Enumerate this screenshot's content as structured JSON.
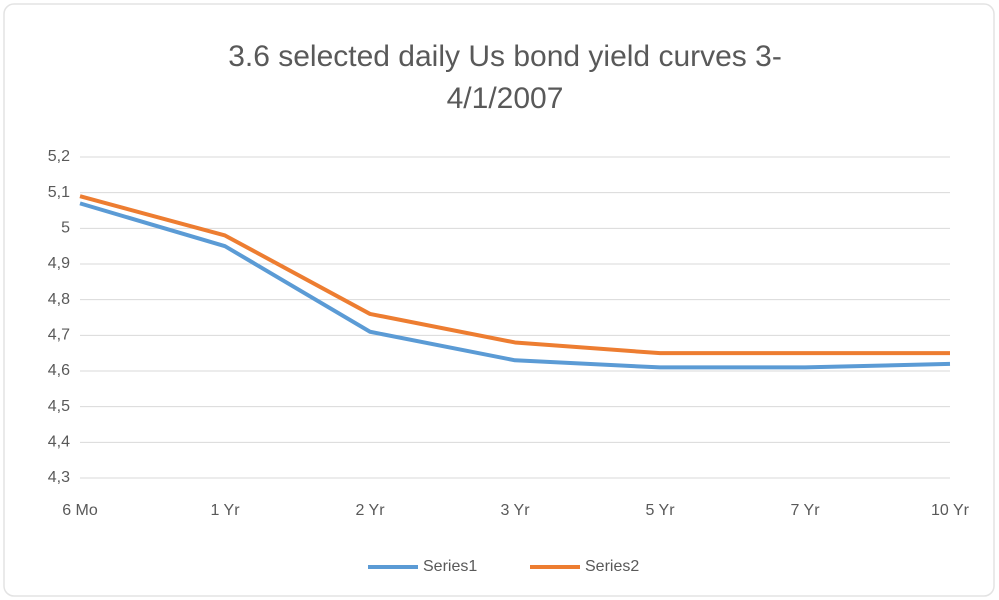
{
  "chart_data": {
    "type": "line",
    "title": [
      "3.6 selected daily Us bond yield curves 3-",
      "4/1/2007"
    ],
    "categories": [
      "6 Mo",
      "1 Yr",
      "2 Yr",
      "3 Yr",
      "5 Yr",
      "7 Yr",
      "10 Yr"
    ],
    "series": [
      {
        "name": "Series1",
        "color": "#5b9bd5",
        "values": [
          5.07,
          4.95,
          4.71,
          4.63,
          4.61,
          4.61,
          4.62
        ]
      },
      {
        "name": "Series2",
        "color": "#ed7d31",
        "values": [
          5.09,
          4.98,
          4.76,
          4.68,
          4.65,
          4.65,
          4.65
        ]
      }
    ],
    "ylim": [
      4.3,
      5.2
    ],
    "yticks": [
      {
        "value": 4.3,
        "label": "4,3"
      },
      {
        "value": 4.4,
        "label": "4,4"
      },
      {
        "value": 4.5,
        "label": "4,5"
      },
      {
        "value": 4.6,
        "label": "4,6"
      },
      {
        "value": 4.7,
        "label": "4,7"
      },
      {
        "value": 4.8,
        "label": "4,8"
      },
      {
        "value": 4.9,
        "label": "4,9"
      },
      5,
      {
        "value": 5.1,
        "label": "5,1"
      },
      {
        "value": 5.2,
        "label": "5,2"
      }
    ],
    "grid": true,
    "legend": "bottom"
  }
}
